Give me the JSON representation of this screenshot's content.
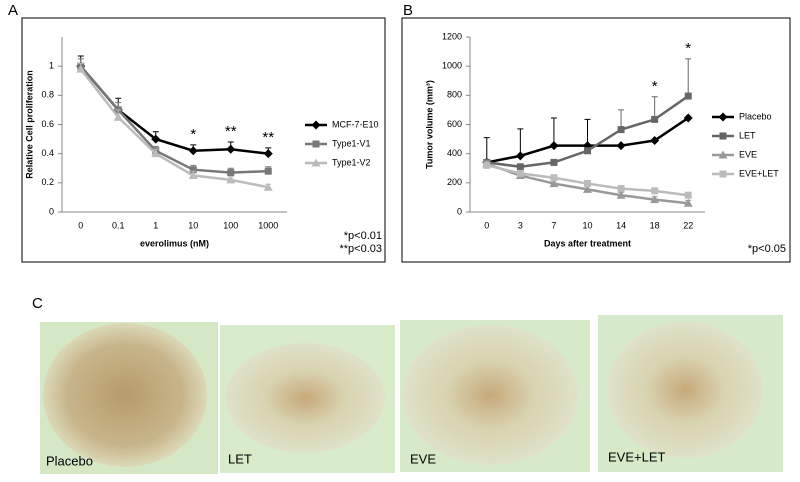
{
  "chart_data": [
    {
      "type": "line",
      "panel": "A",
      "x_label": "everolimus (nM)",
      "y_label": "Relative Cell proliferation",
      "categories": [
        "0",
        "0.1",
        "1",
        "10",
        "100",
        "1000"
      ],
      "ylim": [
        0,
        1.2
      ],
      "yticks": [
        0,
        0.2,
        0.4,
        0.6,
        0.8,
        1
      ],
      "series": [
        {
          "name": "MCF-7-E10",
          "color": "#000000",
          "marker": "diamond",
          "values": [
            1.0,
            0.7,
            0.5,
            0.42,
            0.43,
            0.4
          ],
          "errors": [
            0.07,
            0.08,
            0.05,
            0.04,
            0.05,
            0.04
          ]
        },
        {
          "name": "Type1-V1",
          "color": "#777777",
          "marker": "square",
          "values": [
            1.0,
            0.7,
            0.42,
            0.29,
            0.27,
            0.28
          ],
          "errors": [
            0.05,
            0.05,
            0.03,
            0.03,
            0.03,
            0.03
          ]
        },
        {
          "name": "Type1-V2",
          "color": "#bbbbbb",
          "marker": "triangle",
          "values": [
            0.98,
            0.65,
            0.4,
            0.25,
            0.22,
            0.17
          ],
          "errors": [
            0.04,
            0.05,
            0.03,
            0.03,
            0.02,
            0.02
          ]
        }
      ],
      "significance": [
        null,
        null,
        null,
        "*",
        "**",
        "**"
      ],
      "notes": [
        "*p<0.01",
        "**p<0.03"
      ]
    },
    {
      "type": "line",
      "panel": "B",
      "x_label": "Days after treatment",
      "y_label": "Tumor volume (mm³)",
      "categories": [
        "0",
        "3",
        "7",
        "10",
        "14",
        "18",
        "22"
      ],
      "ylim": [
        0,
        1200
      ],
      "yticks": [
        0,
        200,
        400,
        600,
        800,
        1000,
        1200
      ],
      "series": [
        {
          "name": "Placebo",
          "color": "#000000",
          "marker": "diamond",
          "values": [
            340,
            385,
            455,
            455,
            455,
            490,
            645
          ],
          "errors": [
            170,
            185,
            190,
            180,
            0,
            0,
            0
          ]
        },
        {
          "name": "LET",
          "color": "#666666",
          "marker": "square",
          "values": [
            340,
            310,
            340,
            420,
            565,
            635,
            795
          ],
          "errors": [
            0,
            0,
            0,
            0,
            135,
            155,
            255
          ]
        },
        {
          "name": "EVE",
          "color": "#999999",
          "marker": "triangle",
          "values": [
            330,
            250,
            195,
            155,
            115,
            85,
            60
          ],
          "errors": [
            20,
            20,
            20,
            20,
            20,
            20,
            20
          ]
        },
        {
          "name": "EVE+LET",
          "color": "#bbbbbb",
          "marker": "square",
          "values": [
            320,
            265,
            235,
            195,
            160,
            145,
            115
          ],
          "errors": [
            20,
            20,
            20,
            20,
            20,
            20,
            20
          ]
        }
      ],
      "significance": [
        null,
        null,
        null,
        null,
        null,
        "*",
        "*"
      ],
      "notes": [
        "*p<0.05"
      ]
    }
  ],
  "panel_c": {
    "label": "C",
    "images": [
      "Placebo",
      "LET",
      "EVE",
      "EVE+LET"
    ]
  }
}
